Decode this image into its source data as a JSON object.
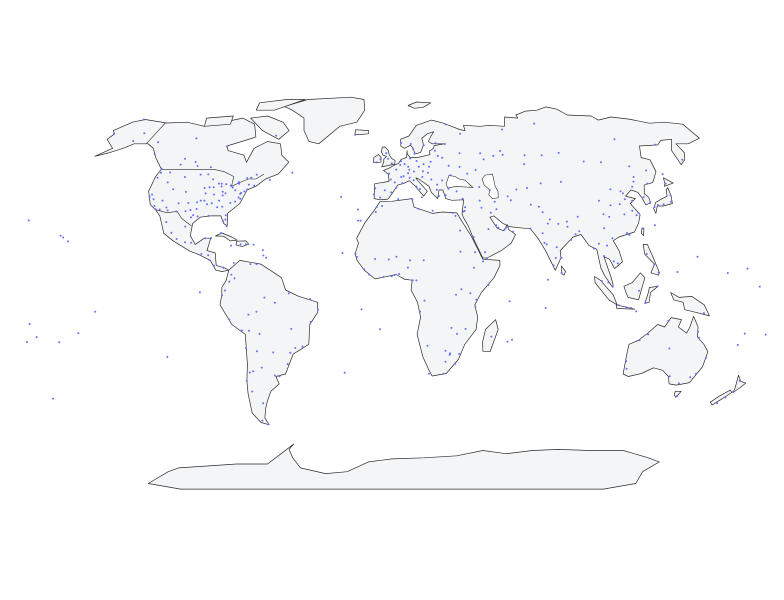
{
  "map": {
    "projection": "natural earth",
    "land_color": "#f4f5f7",
    "coast_color": "#2a2a2a",
    "marker_color": "#636efa",
    "points": [
      [
        -74,
        40.7
      ],
      [
        -73.8,
        42.7
      ],
      [
        -71,
        42.3
      ],
      [
        -75.2,
        39.9
      ],
      [
        -77,
        38.9
      ],
      [
        -76.6,
        39.3
      ],
      [
        -80,
        40.4
      ],
      [
        -81.7,
        41.5
      ],
      [
        -83,
        42.3
      ],
      [
        -84.5,
        39.1
      ],
      [
        -86.2,
        39.8
      ],
      [
        -87.6,
        41.9
      ],
      [
        -90.2,
        38.6
      ],
      [
        -93.3,
        44.9
      ],
      [
        -94.6,
        39.1
      ],
      [
        -96,
        41.3
      ],
      [
        -97.5,
        35.5
      ],
      [
        -96.8,
        32.8
      ],
      [
        -95.4,
        29.8
      ],
      [
        -98.5,
        29.4
      ],
      [
        -97.7,
        30.3
      ],
      [
        -90.1,
        30
      ],
      [
        -86.8,
        33.5
      ],
      [
        -84.4,
        33.7
      ],
      [
        -81.7,
        30.3
      ],
      [
        -80.2,
        25.8
      ],
      [
        -82.5,
        27.9
      ],
      [
        -81.4,
        28.5
      ],
      [
        -80.8,
        35.2
      ],
      [
        -78.6,
        35.8
      ],
      [
        -77.4,
        37.5
      ],
      [
        -76.3,
        36.9
      ],
      [
        -86.8,
        36.2
      ],
      [
        -85.7,
        38.3
      ],
      [
        -90,
        35.1
      ],
      [
        -92.3,
        34.7
      ],
      [
        -88,
        43
      ],
      [
        -89.4,
        43.1
      ],
      [
        -85.6,
        42.9
      ],
      [
        -104.9,
        39.7
      ],
      [
        -111.9,
        40.8
      ],
      [
        -112,
        33.4
      ],
      [
        -110.9,
        32.2
      ],
      [
        -106.6,
        35.1
      ],
      [
        -115.1,
        36.2
      ],
      [
        -118.2,
        34
      ],
      [
        -117.2,
        32.7
      ],
      [
        -119.8,
        36.7
      ],
      [
        -121.5,
        38.6
      ],
      [
        -122.4,
        37.8
      ],
      [
        -122.7,
        45.5
      ],
      [
        -122.3,
        47.6
      ],
      [
        -117.4,
        47.7
      ],
      [
        -116.2,
        43.6
      ],
      [
        -108.5,
        45.8
      ],
      [
        -100.8,
        46.8
      ],
      [
        -96.8,
        46.9
      ],
      [
        -101.8,
        35.2
      ],
      [
        -106.5,
        31.8
      ],
      [
        -102,
        31.9
      ],
      [
        -99.7,
        32.4
      ],
      [
        -94.1,
        36.2
      ],
      [
        -91.5,
        41.6
      ],
      [
        -93.6,
        41.6
      ],
      [
        -95.9,
        36.2
      ],
      [
        -79,
        43
      ],
      [
        -75.7,
        45.4
      ],
      [
        -73.6,
        45.5
      ],
      [
        -79.4,
        43.7
      ],
      [
        -71.2,
        46.8
      ],
      [
        -63.6,
        44.6
      ],
      [
        -52.7,
        47.6
      ],
      [
        -97.1,
        49.9
      ],
      [
        -104.6,
        50.4
      ],
      [
        -106.7,
        52.1
      ],
      [
        -113.5,
        53.5
      ],
      [
        -114.1,
        51
      ],
      [
        -123.1,
        49.3
      ],
      [
        -135,
        60.7
      ],
      [
        -114.4,
        62.4
      ],
      [
        -68.5,
        63.7
      ],
      [
        -94,
        58.8
      ],
      [
        -149.9,
        61.2
      ],
      [
        -147.7,
        64.8
      ],
      [
        -156.8,
        71.3
      ],
      [
        -165.4,
        64.5
      ],
      [
        -131.6,
        55.3
      ],
      [
        -99.1,
        19.4
      ],
      [
        -103.3,
        20.7
      ],
      [
        -100.3,
        25.7
      ],
      [
        -106.4,
        23.2
      ],
      [
        -110,
        27.5
      ],
      [
        -115,
        32.6
      ],
      [
        -86.8,
        21.1
      ],
      [
        -89.6,
        21
      ],
      [
        -96.1,
        19.2
      ],
      [
        -90.5,
        14.6
      ],
      [
        -87.2,
        14.1
      ],
      [
        -86.3,
        12.1
      ],
      [
        -84.1,
        9.9
      ],
      [
        -79.5,
        9
      ],
      [
        -82.4,
        23.1
      ],
      [
        -76.8,
        18
      ],
      [
        -72.3,
        18.5
      ],
      [
        -69.9,
        18.5
      ],
      [
        -66.1,
        18.4
      ],
      [
        -61.5,
        16.2
      ],
      [
        -61,
        14
      ],
      [
        -59.6,
        13.1
      ],
      [
        -74.1,
        4.7
      ],
      [
        -75.6,
        6.2
      ],
      [
        -76.5,
        3.4
      ],
      [
        -74.8,
        11
      ],
      [
        -66.9,
        10.5
      ],
      [
        -64,
        10.5
      ],
      [
        -78.5,
        -0.2
      ],
      [
        -79.9,
        -2.2
      ],
      [
        -77,
        -12
      ],
      [
        -71.5,
        -16.4
      ],
      [
        -68.1,
        -16.5
      ],
      [
        -63.2,
        -17.8
      ],
      [
        -60,
        -3.1
      ],
      [
        -48.5,
        -1.4
      ],
      [
        -38.5,
        -3.7
      ],
      [
        -34.9,
        -8
      ],
      [
        -38.5,
        -13
      ],
      [
        -47.9,
        -15.8
      ],
      [
        -43.2,
        -22.9
      ],
      [
        -46.6,
        -23.5
      ],
      [
        -49.3,
        -25.4
      ],
      [
        -51.2,
        -30
      ],
      [
        -56.2,
        -34.9
      ],
      [
        -58.4,
        -34.6
      ],
      [
        -64.2,
        -31.4
      ],
      [
        -68.8,
        -32.9
      ],
      [
        -65.4,
        -24.8
      ],
      [
        -70.6,
        -33.4
      ],
      [
        -73,
        -36.8
      ],
      [
        -70.4,
        -23.6
      ],
      [
        -71.6,
        -41.1
      ],
      [
        -67.5,
        -45.9
      ],
      [
        -70.9,
        -53.2
      ],
      [
        -68.3,
        -54.8
      ],
      [
        -57.6,
        -25.3
      ],
      [
        -55.1,
        -5.2
      ],
      [
        -67.8,
        -10
      ],
      [
        -63.9,
        -8.8
      ],
      [
        -0.1,
        51.5
      ],
      [
        -2.2,
        53.5
      ],
      [
        -3.2,
        55.9
      ],
      [
        -6.3,
        53.3
      ],
      [
        -8.5,
        51.9
      ],
      [
        2.3,
        48.9
      ],
      [
        4.8,
        45.8
      ],
      [
        5.4,
        43.3
      ],
      [
        -0.6,
        44.8
      ],
      [
        1.4,
        43.6
      ],
      [
        -1.6,
        47.2
      ],
      [
        4.9,
        52.4
      ],
      [
        4.4,
        50.8
      ],
      [
        6.8,
        51.2
      ],
      [
        8.7,
        50.1
      ],
      [
        13.4,
        52.5
      ],
      [
        10,
        53.6
      ],
      [
        11.6,
        48.1
      ],
      [
        9.2,
        48.8
      ],
      [
        16.4,
        48.2
      ],
      [
        14.4,
        50.1
      ],
      [
        19,
        47.5
      ],
      [
        21,
        52.2
      ],
      [
        19.9,
        50.1
      ],
      [
        17,
        51.1
      ],
      [
        8.5,
        47.4
      ],
      [
        6.1,
        46.2
      ],
      [
        9.2,
        45.5
      ],
      [
        12.5,
        41.9
      ],
      [
        14.3,
        40.9
      ],
      [
        11.3,
        44.5
      ],
      [
        15.1,
        37.5
      ],
      [
        -3.7,
        40.4
      ],
      [
        2.2,
        41.4
      ],
      [
        -0.4,
        39.5
      ],
      [
        -6,
        37.4
      ],
      [
        -8.6,
        41.2
      ],
      [
        -9.1,
        38.7
      ],
      [
        12.6,
        55.7
      ],
      [
        18.1,
        59.3
      ],
      [
        10.8,
        59.9
      ],
      [
        5.3,
        60.4
      ],
      [
        11.9,
        57.7
      ],
      [
        24.9,
        60.2
      ],
      [
        24.1,
        56.9
      ],
      [
        25.3,
        54.7
      ],
      [
        30.3,
        59.9
      ],
      [
        37.6,
        55.8
      ],
      [
        27.6,
        53.9
      ],
      [
        30.5,
        50.5
      ],
      [
        36.2,
        50
      ],
      [
        30.7,
        46.5
      ],
      [
        26.1,
        44.4
      ],
      [
        23.3,
        42.7
      ],
      [
        20.5,
        44.8
      ],
      [
        15.9,
        45.8
      ],
      [
        23.7,
        38
      ],
      [
        22.9,
        40.6
      ],
      [
        28.9,
        41
      ],
      [
        32.9,
        39.9
      ],
      [
        27.1,
        38.4
      ],
      [
        35.5,
        36.9
      ],
      [
        44,
        36.2
      ],
      [
        49.9,
        40.4
      ],
      [
        44.8,
        41.7
      ],
      [
        39.7,
        47.2
      ],
      [
        44.5,
        48.7
      ],
      [
        50.1,
        53.2
      ],
      [
        49.1,
        55.8
      ],
      [
        56,
        54.7
      ],
      [
        60.6,
        56.8
      ],
      [
        61.4,
        55.2
      ],
      [
        73.4,
        55
      ],
      [
        82.9,
        55
      ],
      [
        92.9,
        56
      ],
      [
        104.3,
        52.3
      ],
      [
        113.5,
        52
      ],
      [
        127.5,
        50.3
      ],
      [
        135.1,
        48.5
      ],
      [
        131.9,
        43.1
      ],
      [
        142.7,
        47
      ],
      [
        158.6,
        53
      ],
      [
        150.8,
        59.6
      ],
      [
        129.7,
        62
      ],
      [
        88.2,
        69.3
      ],
      [
        66.6,
        66.5
      ],
      [
        40.5,
        64.5
      ],
      [
        33.1,
        68.9
      ],
      [
        76.9,
        43.2
      ],
      [
        71.4,
        51.2
      ],
      [
        69.2,
        41.3
      ],
      [
        63.6,
        40.7
      ],
      [
        58.4,
        37.9
      ],
      [
        69.2,
        34.5
      ],
      [
        51.4,
        35.7
      ],
      [
        59.6,
        36.3
      ],
      [
        51.7,
        32.7
      ],
      [
        48.7,
        31.3
      ],
      [
        44.4,
        33.3
      ],
      [
        36.3,
        33.5
      ],
      [
        35.2,
        31.8
      ],
      [
        35.9,
        32
      ],
      [
        31.2,
        30
      ],
      [
        29.9,
        31.2
      ],
      [
        32.9,
        24.1
      ],
      [
        46.7,
        24.7
      ],
      [
        39.2,
        21.5
      ],
      [
        50.6,
        26.2
      ],
      [
        51.5,
        25.3
      ],
      [
        55.3,
        25.3
      ],
      [
        54.4,
        24.5
      ],
      [
        58.4,
        23.6
      ],
      [
        44.2,
        15.4
      ],
      [
        45,
        12.8
      ],
      [
        67,
        24.9
      ],
      [
        74.3,
        31.5
      ],
      [
        73,
        33.7
      ],
      [
        77.2,
        28.6
      ],
      [
        75.8,
        26.9
      ],
      [
        72.6,
        23
      ],
      [
        72.9,
        19.1
      ],
      [
        73.9,
        18.5
      ],
      [
        78.5,
        17.4
      ],
      [
        77.6,
        13
      ],
      [
        80.3,
        13.1
      ],
      [
        76.3,
        10
      ],
      [
        79.9,
        6.9
      ],
      [
        85.8,
        20.3
      ],
      [
        88.4,
        22.6
      ],
      [
        85.1,
        25.6
      ],
      [
        80.9,
        26.8
      ],
      [
        90.4,
        23.8
      ],
      [
        85.3,
        27.7
      ],
      [
        96.2,
        16.8
      ],
      [
        100.5,
        13.8
      ],
      [
        98.9,
        18.8
      ],
      [
        102.6,
        18
      ],
      [
        104.9,
        11.6
      ],
      [
        106.7,
        10.8
      ],
      [
        105.8,
        21
      ],
      [
        101.7,
        3.1
      ],
      [
        103.8,
        1.3
      ],
      [
        106.8,
        -6.2
      ],
      [
        110.4,
        -7
      ],
      [
        112.7,
        -7.3
      ],
      [
        115.2,
        -8.7
      ],
      [
        98.7,
        3.6
      ],
      [
        116.1,
        -0.3
      ],
      [
        119.4,
        -5.1
      ],
      [
        124.8,
        1.5
      ],
      [
        120.9,
        14.6
      ],
      [
        123.9,
        10.3
      ],
      [
        125.6,
        7.1
      ],
      [
        114.2,
        22.3
      ],
      [
        113.3,
        23.1
      ],
      [
        121.5,
        25
      ],
      [
        121.5,
        31.2
      ],
      [
        120.2,
        30.3
      ],
      [
        118.8,
        32.1
      ],
      [
        114.3,
        30.6
      ],
      [
        104.1,
        30.7
      ],
      [
        106.5,
        29.6
      ],
      [
        102.7,
        25
      ],
      [
        108.9,
        34.3
      ],
      [
        116.4,
        39.9
      ],
      [
        117.2,
        39.1
      ],
      [
        123.4,
        41.8
      ],
      [
        126.6,
        45.8
      ],
      [
        125.3,
        43.9
      ],
      [
        103.8,
        36.1
      ],
      [
        87.6,
        43.8
      ],
      [
        91.1,
        29.7
      ],
      [
        111.7,
        40.8
      ],
      [
        113.6,
        34.7
      ],
      [
        117,
        36.7
      ],
      [
        120.4,
        36.1
      ],
      [
        126.9,
        37.6
      ],
      [
        129,
        35.2
      ],
      [
        139.7,
        35.7
      ],
      [
        135.5,
        34.7
      ],
      [
        130.4,
        33.6
      ],
      [
        141.4,
        43.1
      ],
      [
        140.9,
        38.3
      ],
      [
        132.5,
        34.4
      ],
      [
        127.7,
        26.2
      ],
      [
        144.8,
        13.5
      ],
      [
        147.2,
        -9.4
      ],
      [
        130.8,
        -12.5
      ],
      [
        115.9,
        -31.9
      ],
      [
        138.6,
        -34.9
      ],
      [
        144.9,
        -37.8
      ],
      [
        151.2,
        -33.9
      ],
      [
        153,
        -27.5
      ],
      [
        146.8,
        -19.3
      ],
      [
        145.8,
        -16.9
      ],
      [
        149.1,
        -35.3
      ],
      [
        147.3,
        -42.9
      ],
      [
        133.9,
        -23.7
      ],
      [
        118.6,
        -20.3
      ],
      [
        122.2,
        -18
      ],
      [
        114.6,
        -28.8
      ],
      [
        174.8,
        -36.8
      ],
      [
        174.8,
        -41.3
      ],
      [
        172.6,
        -43.5
      ],
      [
        170.5,
        -45.9
      ],
      [
        178.4,
        -18.1
      ],
      [
        166.4,
        -22.3
      ],
      [
        168.3,
        -17.7
      ],
      [
        -149.6,
        -17.5
      ],
      [
        -157.9,
        21.3
      ],
      [
        -155.1,
        19.7
      ],
      [
        -159.4,
        22
      ],
      [
        -171.8,
        -13.8
      ],
      [
        -175.2,
        -21.1
      ],
      [
        -159.8,
        -21.2
      ],
      [
        -109.4,
        -27.1
      ],
      [
        -90.3,
        -0.9
      ],
      [
        -140,
        -8.8
      ],
      [
        -169.9,
        -19.1
      ],
      [
        172.9,
        1.4
      ],
      [
        158.2,
        6.9
      ],
      [
        134.5,
        7.3
      ],
      [
        167.7,
        8.7
      ],
      [
        -176,
        -44
      ],
      [
        -177.4,
        28.2
      ],
      [
        -7.6,
        33.6
      ],
      [
        -5,
        34
      ],
      [
        -8,
        31.6
      ],
      [
        3.1,
        36.8
      ],
      [
        10.2,
        36.8
      ],
      [
        13.2,
        32.9
      ],
      [
        20.1,
        32.1
      ],
      [
        -17.4,
        14.7
      ],
      [
        -16.6,
        13.4
      ],
      [
        -13.2,
        8.5
      ],
      [
        -10.8,
        6.3
      ],
      [
        -4,
        5.3
      ],
      [
        -0.2,
        5.6
      ],
      [
        1.2,
        6.1
      ],
      [
        3.4,
        6.5
      ],
      [
        7.5,
        9.1
      ],
      [
        8.5,
        12
      ],
      [
        11.5,
        3.9
      ],
      [
        9.7,
        4
      ],
      [
        15.3,
        -4.3
      ],
      [
        13.2,
        -8.8
      ],
      [
        -1.5,
        12.4
      ],
      [
        -8,
        12.6
      ],
      [
        2.1,
        13.5
      ],
      [
        15,
        12.1
      ],
      [
        32.5,
        15.6
      ],
      [
        38.7,
        9
      ],
      [
        39.5,
        15.3
      ],
      [
        43.1,
        11.6
      ],
      [
        45.3,
        2
      ],
      [
        36.8,
        -1.3
      ],
      [
        39.7,
        -4
      ],
      [
        32.6,
        0.3
      ],
      [
        30.1,
        -1.9
      ],
      [
        39.3,
        -6.8
      ],
      [
        28.3,
        -15.4
      ],
      [
        31,
        -17.8
      ],
      [
        35,
        -15.8
      ],
      [
        32.6,
        -25.9
      ],
      [
        28,
        -26.2
      ],
      [
        28.2,
        -25.7
      ],
      [
        31,
        -29.9
      ],
      [
        18.4,
        -33.9
      ],
      [
        25.6,
        -33.9
      ],
      [
        26.2,
        -29.1
      ],
      [
        17.1,
        -22.6
      ],
      [
        25.9,
        -24.6
      ],
      [
        47.5,
        -18.9
      ],
      [
        57.5,
        -20.2
      ],
      [
        55.5,
        -21
      ],
      [
        -23.5,
        15
      ],
      [
        -16.6,
        28.1
      ],
      [
        -15.4,
        28.1
      ],
      [
        -16.9,
        32.6
      ],
      [
        -25.7,
        37.7
      ],
      [
        -21.9,
        64.1
      ],
      [
        -14.4,
        -7.9
      ],
      [
        -5.7,
        -15.9
      ],
      [
        55.4,
        -4.6
      ],
      [
        73.5,
        4.2
      ],
      [
        72.4,
        -7.3
      ],
      [
        -23.5,
        -33.5
      ]
    ]
  }
}
